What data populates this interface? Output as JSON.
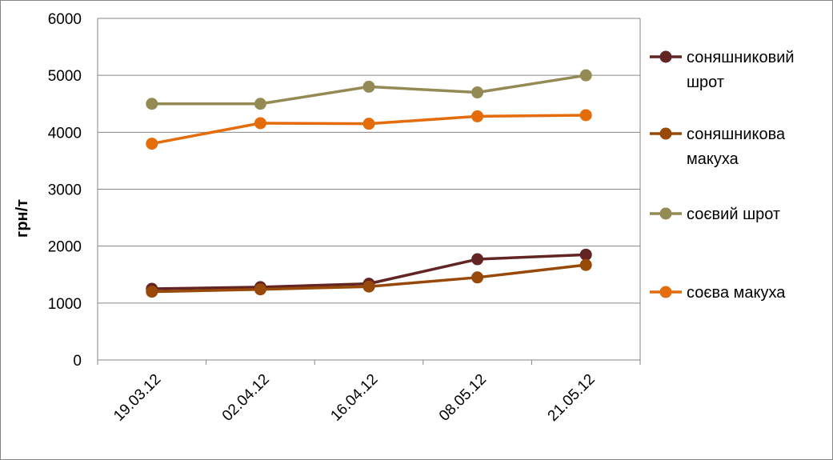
{
  "chart_data": {
    "type": "line",
    "title": "",
    "xlabel": "",
    "ylabel": "грн/т",
    "ylim": [
      0,
      6000
    ],
    "yticks": [
      "0",
      "1000",
      "2000",
      "3000",
      "4000",
      "5000",
      "6000"
    ],
    "grid": true,
    "legend_position": "right",
    "categories": [
      "19.03.12",
      "02.04.12",
      "16.04.12",
      "08.05.12",
      "21.05.12"
    ],
    "series": [
      {
        "name": "соняшниковий шрот",
        "legend_lines": [
          "соняшниковий",
          "шрот"
        ],
        "color": "#632523",
        "values": [
          1250,
          1280,
          1340,
          1770,
          1850
        ]
      },
      {
        "name": "соняшникова макуха",
        "legend_lines": [
          "соняшникова",
          "макуха"
        ],
        "color": "#984807",
        "values": [
          1200,
          1240,
          1290,
          1450,
          1670
        ]
      },
      {
        "name": "соєвий шрот",
        "legend_lines": [
          "соєвий шрот"
        ],
        "color": "#948A54",
        "values": [
          4500,
          4500,
          4800,
          4700,
          5000
        ]
      },
      {
        "name": "соєва макуха",
        "legend_lines": [
          "соєва макуха"
        ],
        "color": "#E46C0A",
        "values": [
          3800,
          4160,
          4150,
          4280,
          4300
        ]
      }
    ]
  }
}
